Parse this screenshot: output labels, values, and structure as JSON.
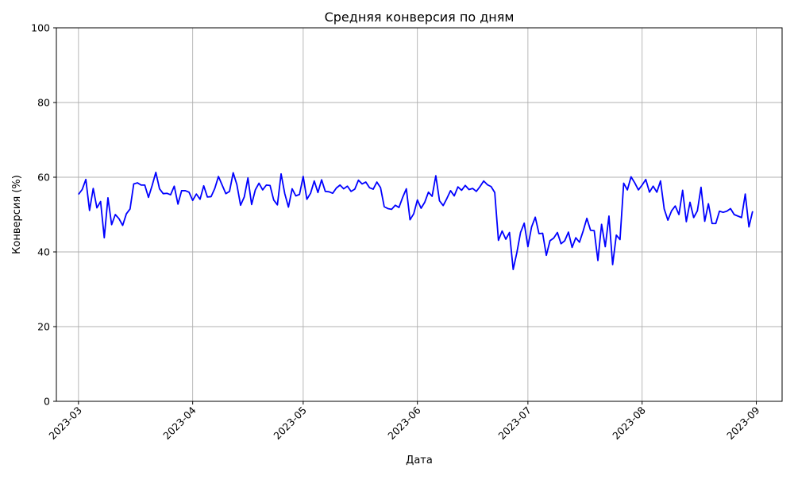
{
  "chart_data": {
    "type": "line",
    "title": "Средняя конверсия по дням",
    "xlabel": "Дата",
    "ylabel": "Конверсия (%)",
    "xlim": [
      "2023-02-23",
      "2023-09-08"
    ],
    "ylim": [
      0,
      100
    ],
    "grid": true,
    "line_color": "#0000ff",
    "x_ticks": [
      "2023-03-01",
      "2023-04-01",
      "2023-05-01",
      "2023-06-01",
      "2023-07-01",
      "2023-08-01",
      "2023-09-01"
    ],
    "x_tick_labels": [
      "2023-03",
      "2023-04",
      "2023-05",
      "2023-06",
      "2023-07",
      "2023-08",
      "2023-09"
    ],
    "y_ticks": [
      0,
      20,
      40,
      60,
      80,
      100
    ],
    "y_tick_labels": [
      "0",
      "20",
      "40",
      "60",
      "80",
      "100"
    ],
    "series": [
      {
        "start": "2023-03-01",
        "values": [
          55.4,
          56.7,
          59.4,
          51.1,
          57.0,
          51.8,
          53.5,
          43.8,
          54.5,
          47.3,
          50.0,
          48.9,
          47.1,
          50.2,
          51.5,
          58.2,
          58.5,
          57.9,
          57.9,
          54.6,
          57.8,
          61.3,
          56.9,
          55.6,
          55.7,
          55.3,
          57.6,
          52.8,
          56.4,
          56.4,
          56.0,
          53.8,
          55.5,
          54.1,
          57.7,
          54.7,
          54.8,
          57.0,
          60.2,
          57.9,
          55.6,
          56.2,
          61.2,
          58.0,
          52.5,
          54.7,
          59.8,
          52.7,
          56.6,
          58.4,
          56.6,
          57.9,
          57.8,
          53.9,
          52.6,
          60.9,
          55.6,
          52.0,
          56.9,
          55.0,
          55.4,
          60.2,
          54.1,
          55.7,
          59.0,
          55.9,
          59.3,
          56.2,
          56.1,
          55.7,
          57.1,
          57.9,
          56.9,
          57.6,
          56.2,
          56.8,
          59.2,
          58.2,
          58.7,
          57.2,
          56.8,
          58.7,
          57.2,
          52.1,
          51.6,
          51.4,
          52.5,
          51.9,
          54.6,
          56.9,
          48.6,
          50.2,
          53.9,
          51.7,
          53.3,
          56.0,
          54.9,
          60.4,
          53.7,
          52.4,
          54.3,
          56.4,
          55.0,
          57.4,
          56.5,
          57.8,
          56.7,
          57.0,
          56.2,
          57.5,
          59.0,
          58.0,
          57.5,
          55.9,
          43.1,
          45.6,
          43.4,
          45.2,
          35.3,
          39.8,
          45.2,
          47.7,
          41.4,
          46.7,
          49.3,
          44.9,
          45.0,
          39.1,
          43.0,
          43.7,
          45.2,
          42.2,
          43.0,
          45.3,
          41.2,
          43.8,
          42.6,
          45.6,
          49.0,
          45.8,
          45.7,
          37.7,
          47.4,
          41.4,
          49.6,
          36.6,
          44.5,
          43.3,
          58.4,
          56.6,
          60.1,
          58.5,
          56.6,
          57.9,
          59.4,
          56.0,
          57.6,
          56.0,
          59.0,
          51.5,
          48.5,
          51.0,
          52.3,
          50.0,
          56.5,
          48.1,
          53.3,
          49.2,
          51.0,
          57.3,
          48.2,
          52.9,
          47.6,
          47.6,
          50.9,
          50.6,
          50.9,
          51.6,
          50.0,
          49.6,
          49.2,
          55.5,
          46.7,
          50.9
        ]
      }
    ]
  }
}
